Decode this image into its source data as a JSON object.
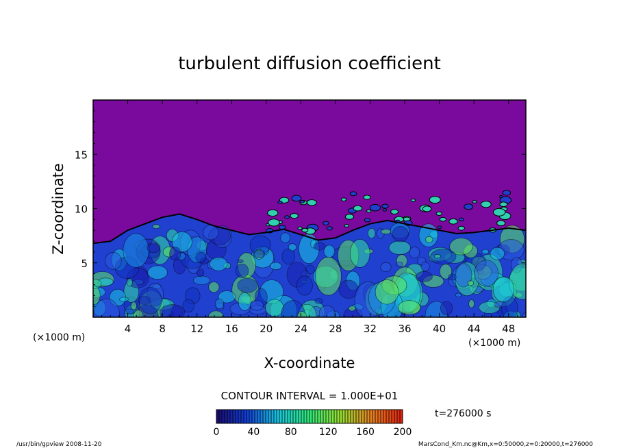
{
  "chart_data": {
    "type": "heatmap",
    "title": "turbulent diffusion coefficient",
    "xlabel": "X-coordinate",
    "ylabel": "Z-coordinate",
    "x_unit_left": "(×1000 m)",
    "x_unit_right": "(×1000 m)",
    "xlim": [
      0,
      50
    ],
    "ylim": [
      0,
      20
    ],
    "x_ticks": [
      4,
      8,
      12,
      16,
      20,
      24,
      28,
      32,
      36,
      40,
      44,
      48
    ],
    "y_ticks": [
      5,
      10,
      15
    ],
    "contour_interval_text": "CONTOUR INTERVAL = 1.000E+01",
    "time_text": "t=276000 s",
    "colorbar": {
      "min": 0,
      "max": 200,
      "ticks": [
        0,
        40,
        80,
        120,
        160,
        200
      ],
      "colors": [
        "#1a0a70",
        "#1040d8",
        "#18c8e0",
        "#30e878",
        "#98e030",
        "#e88020",
        "#e02010"
      ]
    },
    "colors": {
      "background_region": "#7a0a9e"
    },
    "boundary_layer_top_km": [
      [
        0,
        6.8
      ],
      [
        2,
        7.0
      ],
      [
        4,
        8.0
      ],
      [
        6,
        8.6
      ],
      [
        8,
        9.2
      ],
      [
        10,
        9.5
      ],
      [
        12,
        9.0
      ],
      [
        14,
        8.4
      ],
      [
        16,
        8.0
      ],
      [
        18,
        7.6
      ],
      [
        20,
        7.8
      ],
      [
        22,
        8.1
      ],
      [
        24,
        7.6
      ],
      [
        26,
        7.1
      ],
      [
        28,
        7.3
      ],
      [
        30,
        8.0
      ],
      [
        32,
        8.6
      ],
      [
        34,
        8.9
      ],
      [
        36,
        8.6
      ],
      [
        38,
        8.3
      ],
      [
        40,
        8.0
      ],
      [
        42,
        7.7
      ],
      [
        44,
        7.8
      ],
      [
        46,
        8.0
      ],
      [
        48,
        8.2
      ],
      [
        50,
        8.0
      ]
    ]
  },
  "footer": {
    "left": "/usr/bin/gpview   2008-11-20",
    "right": "MarsCond_Km.nc@Km,x=0:50000,z=0:20000,t=276000"
  }
}
